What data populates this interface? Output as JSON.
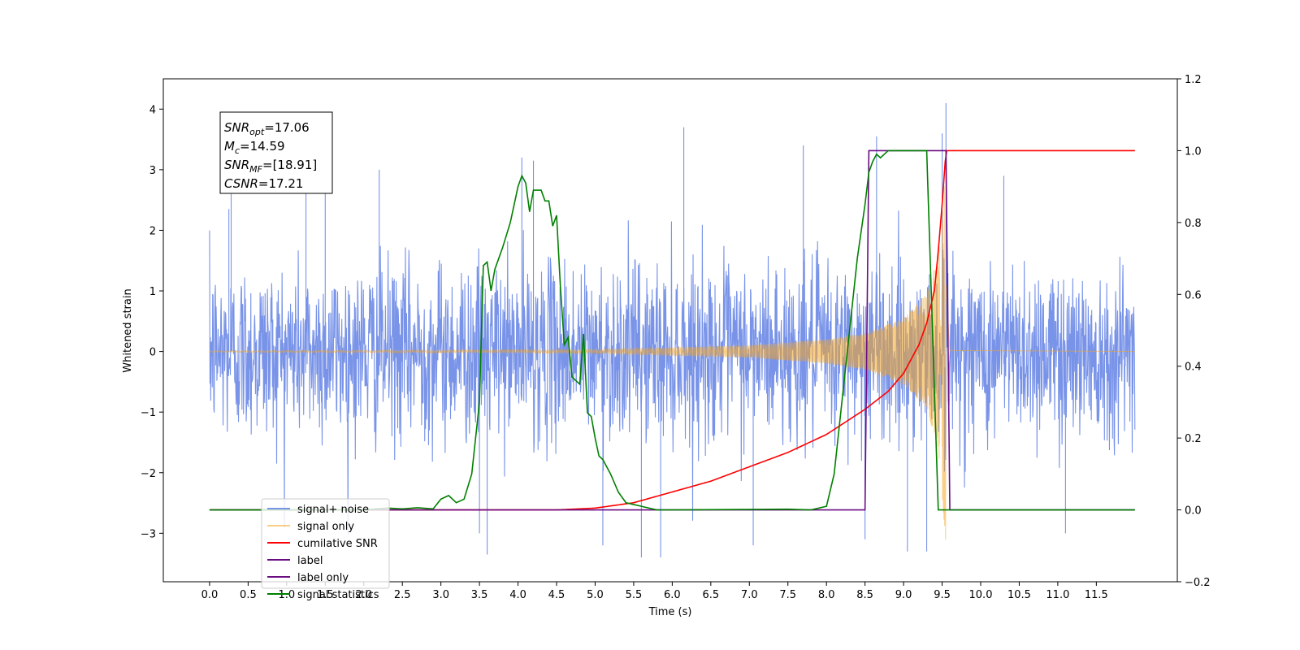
{
  "chart_data": {
    "type": "line",
    "xlabel": "Time (s)",
    "ylabel": "Whitened strain",
    "xlim": [
      -0.6,
      12.55
    ],
    "ylim": [
      -3.8,
      4.5
    ],
    "y2lim": [
      -0.2,
      1.2
    ],
    "x_ticks": [
      "0.0",
      "0.5",
      "1.0",
      "1.5",
      "2.0",
      "2.5",
      "3.0",
      "3.5",
      "4.0",
      "4.5",
      "5.0",
      "5.5",
      "6.0",
      "6.5",
      "7.0",
      "7.5",
      "8.0",
      "8.5",
      "9.0",
      "9.5",
      "10.0",
      "10.5",
      "11.0",
      "11.5"
    ],
    "y_ticks": [
      "−3",
      "−2",
      "−1",
      "0",
      "1",
      "2",
      "3",
      "4"
    ],
    "y2_ticks": [
      "−0.2",
      "0.0",
      "0.2",
      "0.4",
      "0.6",
      "0.8",
      "1.0",
      "1.2"
    ],
    "grid": false,
    "legend_position": "lower-left",
    "stats_box": [
      {
        "main": "SNR",
        "sub": "opt",
        "value": "=17.06"
      },
      {
        "main": "M",
        "sub": "c",
        "value": "=14.59"
      },
      {
        "main": "SNR",
        "sub": "MF",
        "value": "=[18.91]"
      },
      {
        "main": "CSNR",
        "sub": "",
        "value": "=17.21"
      }
    ],
    "series": [
      {
        "name": "signal+ noise",
        "axis": "left",
        "color": "#7893e8",
        "kind": "noise",
        "x_range": [
          0.0,
          12.0
        ],
        "typical_range": [
          -1.8,
          2.0
        ],
        "min": -3.4,
        "max": 4.1
      },
      {
        "name": "signal only",
        "axis": "left",
        "color": "#f5a623",
        "kind": "chirp",
        "x_range": [
          0.0,
          12.0
        ],
        "merger_time": 9.55,
        "amplitude_points": [
          [
            0.0,
            0.01
          ],
          [
            5.0,
            0.03
          ],
          [
            7.0,
            0.1
          ],
          [
            8.0,
            0.2
          ],
          [
            8.5,
            0.3
          ],
          [
            9.0,
            0.55
          ],
          [
            9.3,
            0.95
          ],
          [
            9.45,
            1.6
          ],
          [
            9.55,
            3.2
          ],
          [
            9.6,
            0.05
          ],
          [
            12.0,
            0.0
          ]
        ]
      },
      {
        "name": "cumilative SNR",
        "axis": "right",
        "color": "#ff0000",
        "x": [
          0.0,
          3.0,
          4.5,
          5.0,
          5.5,
          6.0,
          6.5,
          7.0,
          7.5,
          8.0,
          8.5,
          8.8,
          9.0,
          9.2,
          9.3,
          9.4,
          9.45,
          9.5,
          9.55,
          12.0
        ],
        "y": [
          0.0,
          0.0,
          0.0,
          0.005,
          0.02,
          0.05,
          0.08,
          0.12,
          0.16,
          0.21,
          0.28,
          0.33,
          0.38,
          0.46,
          0.52,
          0.61,
          0.72,
          0.85,
          1.0,
          1.0
        ]
      },
      {
        "name": "label",
        "axis": "right",
        "color": "#6a0d83",
        "x": [
          0.0,
          8.5,
          8.55,
          9.55,
          9.6,
          12.0
        ],
        "y": [
          0.0,
          0.0,
          1.0,
          1.0,
          0.0,
          0.0
        ]
      },
      {
        "name": "label only",
        "axis": "right",
        "color": "#6a0d83",
        "hidden_in_plot": true,
        "x": [],
        "y": []
      },
      {
        "name": "signal statistics",
        "axis": "right",
        "color": "#008000",
        "x": [
          0.0,
          2.0,
          2.3,
          2.5,
          2.7,
          2.9,
          3.0,
          3.1,
          3.2,
          3.3,
          3.4,
          3.5,
          3.55,
          3.6,
          3.65,
          3.7,
          3.75,
          3.8,
          3.9,
          3.95,
          4.0,
          4.05,
          4.1,
          4.15,
          4.2,
          4.25,
          4.3,
          4.35,
          4.4,
          4.45,
          4.5,
          4.55,
          4.6,
          4.65,
          4.7,
          4.8,
          4.85,
          4.9,
          4.95,
          5.0,
          5.05,
          5.1,
          5.15,
          5.2,
          5.3,
          5.4,
          5.5,
          5.6,
          5.7,
          5.8,
          5.9,
          6.0,
          7.5,
          7.8,
          8.0,
          8.1,
          8.2,
          8.3,
          8.4,
          8.5,
          8.55,
          8.6,
          8.65,
          8.7,
          8.75,
          8.8,
          8.9,
          9.0,
          9.2,
          9.3,
          9.45,
          9.5,
          9.55,
          9.6,
          12.0
        ],
        "y": [
          0.0,
          0.0,
          0.005,
          0.003,
          0.006,
          0.003,
          0.03,
          0.04,
          0.02,
          0.03,
          0.1,
          0.3,
          0.68,
          0.69,
          0.61,
          0.67,
          0.7,
          0.73,
          0.8,
          0.85,
          0.9,
          0.93,
          0.91,
          0.83,
          0.89,
          0.89,
          0.89,
          0.86,
          0.86,
          0.79,
          0.82,
          0.62,
          0.46,
          0.48,
          0.37,
          0.35,
          0.49,
          0.27,
          0.26,
          0.2,
          0.15,
          0.14,
          0.12,
          0.1,
          0.05,
          0.02,
          0.015,
          0.01,
          0.005,
          0.0,
          0.0,
          0.0,
          0.002,
          0.0,
          0.01,
          0.1,
          0.3,
          0.5,
          0.7,
          0.85,
          0.94,
          0.97,
          0.99,
          0.98,
          0.99,
          1.0,
          1.0,
          1.0,
          1.0,
          1.0,
          0.0,
          0.0,
          0.0,
          0.0,
          0.0
        ]
      }
    ]
  }
}
